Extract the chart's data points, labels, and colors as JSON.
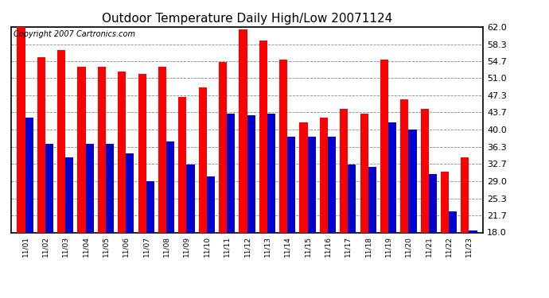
{
  "title": "Outdoor Temperature Daily High/Low 20071124",
  "copyright": "Copyright 2007 Cartronics.com",
  "labels": [
    "11/01",
    "11/02",
    "11/03",
    "11/04",
    "11/05",
    "11/06",
    "11/07",
    "11/08",
    "11/09",
    "11/10",
    "11/11",
    "11/12",
    "11/13",
    "11/14",
    "11/15",
    "11/16",
    "11/17",
    "11/18",
    "11/19",
    "11/20",
    "11/21",
    "11/22",
    "11/23"
  ],
  "highs": [
    62.0,
    55.5,
    57.0,
    53.5,
    53.5,
    52.5,
    52.0,
    53.5,
    47.0,
    49.0,
    54.5,
    61.5,
    59.0,
    55.0,
    41.5,
    42.5,
    44.5,
    43.5,
    55.0,
    46.5,
    44.5,
    31.0,
    34.0
  ],
  "lows": [
    42.5,
    37.0,
    34.0,
    37.0,
    37.0,
    35.0,
    29.0,
    37.5,
    32.5,
    30.0,
    43.5,
    43.0,
    43.5,
    38.5,
    38.5,
    38.5,
    32.5,
    32.0,
    41.5,
    40.0,
    30.5,
    22.5,
    18.5
  ],
  "ylim": [
    18.0,
    62.0
  ],
  "yticks": [
    18.0,
    21.7,
    25.3,
    29.0,
    32.7,
    36.3,
    40.0,
    43.7,
    47.3,
    51.0,
    54.7,
    58.3,
    62.0
  ],
  "high_color": "#ff0000",
  "low_color": "#0000cc",
  "bg_color": "#ffffff",
  "plot_bg_color": "#ffffff",
  "grid_color": "#888888",
  "title_fontsize": 11,
  "copyright_fontsize": 7,
  "bar_width": 0.4
}
